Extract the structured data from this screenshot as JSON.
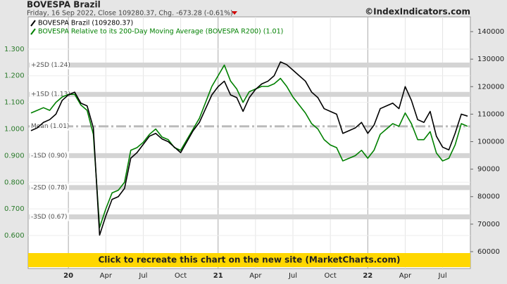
{
  "chart_data": {
    "type": "line",
    "title": "BOVESPA Brazil",
    "subtitle": "Friday, 16 Sep 2022, Close 109280.37, Chg. -673.28 (-0.61%)",
    "source": "©IndexIndicators.com",
    "banner": "Click to recreate this chart on the new site (MarketCharts.com)",
    "categories": [
      null,
      null,
      null,
      null,
      null,
      null,
      "20",
      null,
      null,
      null,
      null,
      null,
      "Apr",
      null,
      null,
      null,
      null,
      null,
      "Jul",
      null,
      null,
      null,
      null,
      null,
      "Oct",
      null,
      null,
      null,
      null,
      null,
      "21",
      null,
      null,
      null,
      null,
      null,
      "Apr",
      null,
      null,
      null,
      null,
      null,
      "Jul",
      null,
      null,
      null,
      null,
      null,
      "Oct",
      null,
      null,
      null,
      null,
      null,
      "22",
      null,
      null,
      null,
      null,
      null,
      "Apr",
      null,
      null,
      null,
      null,
      null,
      "Jul",
      null,
      null,
      null,
      null
    ],
    "series": [
      {
        "name": "BOVESPA Brazil (109280.37)",
        "color": "#000000",
        "axis": "y2",
        "values": [
          104000,
          105000,
          107000,
          108000,
          110000,
          115000,
          117000,
          118000,
          114000,
          113000,
          105000,
          66000,
          73000,
          79000,
          80000,
          83000,
          94000,
          96000,
          99000,
          102000,
          103000,
          101000,
          100000,
          98000,
          96000,
          100000,
          104000,
          107000,
          112000,
          117000,
          120000,
          122000,
          117000,
          116000,
          111000,
          116000,
          119000,
          121000,
          122000,
          124000,
          129000,
          128000,
          126000,
          124000,
          122000,
          118000,
          116000,
          112000,
          111000,
          110000,
          103000,
          104000,
          105000,
          107000,
          103000,
          106000,
          112000,
          113000,
          114000,
          112000,
          120000,
          115000,
          108000,
          107000,
          111000,
          102000,
          98000,
          97000,
          103000,
          110000,
          109280
        ]
      },
      {
        "name": "BOVESPA Relative to its 200-Day Moving Average (BOVESPA R200) (1.01)",
        "color": "#008000",
        "axis": "y",
        "values": [
          1.06,
          1.07,
          1.08,
          1.07,
          1.1,
          1.12,
          1.13,
          1.13,
          1.09,
          1.07,
          0.98,
          0.63,
          0.7,
          0.76,
          0.77,
          0.8,
          0.92,
          0.93,
          0.95,
          0.98,
          1.0,
          0.97,
          0.96,
          0.93,
          0.92,
          0.96,
          1.0,
          1.04,
          1.1,
          1.16,
          1.2,
          1.24,
          1.18,
          1.15,
          1.1,
          1.14,
          1.15,
          1.16,
          1.16,
          1.17,
          1.19,
          1.16,
          1.12,
          1.09,
          1.06,
          1.02,
          1.0,
          0.96,
          0.94,
          0.93,
          0.88,
          0.89,
          0.9,
          0.92,
          0.89,
          0.92,
          0.98,
          1.0,
          1.02,
          1.01,
          1.06,
          1.02,
          0.96,
          0.96,
          0.99,
          0.91,
          0.88,
          0.89,
          0.94,
          1.02,
          1.01
        ]
      }
    ],
    "bands": [
      {
        "label": "+2SD (1.24)",
        "value": 1.24
      },
      {
        "label": "+1SD (1.13)",
        "value": 1.13
      },
      {
        "label": "Mean (1.01)",
        "value": 1.01
      },
      {
        "label": "-1SD (0.90)",
        "value": 0.9
      },
      {
        "label": "-2SD (0.78)",
        "value": 0.78
      },
      {
        "label": "-3SD (0.67)",
        "value": 0.67
      }
    ],
    "ylim": [
      0.476,
      1.421
    ],
    "yticks": [
      {
        "value": 0.6,
        "label": "0.600"
      },
      {
        "value": 0.7,
        "label": "0.700"
      },
      {
        "value": 0.8,
        "label": "0.800"
      },
      {
        "value": 0.9,
        "label": "0.900"
      },
      {
        "value": 1.0,
        "label": "1.000"
      },
      {
        "value": 1.1,
        "label": "1.100"
      },
      {
        "value": 1.2,
        "label": "1.200"
      },
      {
        "value": 1.3,
        "label": "1.300"
      }
    ],
    "y2lim": [
      53860,
      145370
    ],
    "y2ticks": [
      60000,
      70000,
      80000,
      90000,
      100000,
      110000,
      120000,
      130000,
      140000
    ],
    "grid": true
  }
}
